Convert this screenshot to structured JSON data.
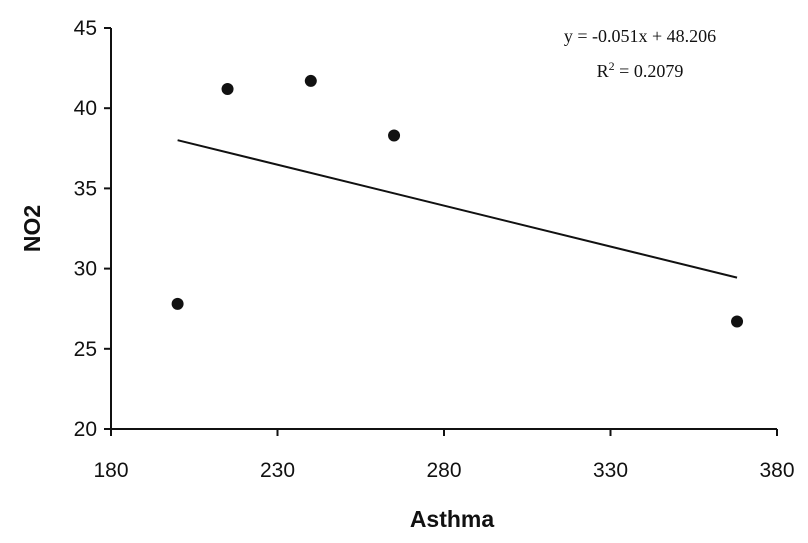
{
  "chart_data": {
    "type": "scatter",
    "title": "",
    "xlabel": "Asthma",
    "ylabel": "NO2",
    "xlim": [
      180,
      380
    ],
    "ylim": [
      20,
      45
    ],
    "x_ticks": [
      "180",
      "230",
      "280",
      "330",
      "380"
    ],
    "y_ticks": [
      "20",
      "25",
      "30",
      "35",
      "40",
      "45"
    ],
    "grid": false,
    "legend": "none",
    "series": [
      {
        "points": [
          {
            "x": 200,
            "y": 27.8
          },
          {
            "x": 215,
            "y": 41.2
          },
          {
            "x": 240,
            "y": 41.7
          },
          {
            "x": 265,
            "y": 38.3
          },
          {
            "x": 368,
            "y": 26.7
          }
        ]
      }
    ],
    "trendline": {
      "slope": -0.051,
      "intercept": 48.206,
      "x_range": [
        200,
        368
      ]
    },
    "annotations": {
      "equation": "y = -0.051x + 48.206",
      "r2_label": "R",
      "r2_sup": "2",
      "r2_value": " = 0.2079"
    },
    "colors": {
      "marker": "#111111",
      "line": "#111111",
      "axis": "#111111"
    }
  }
}
